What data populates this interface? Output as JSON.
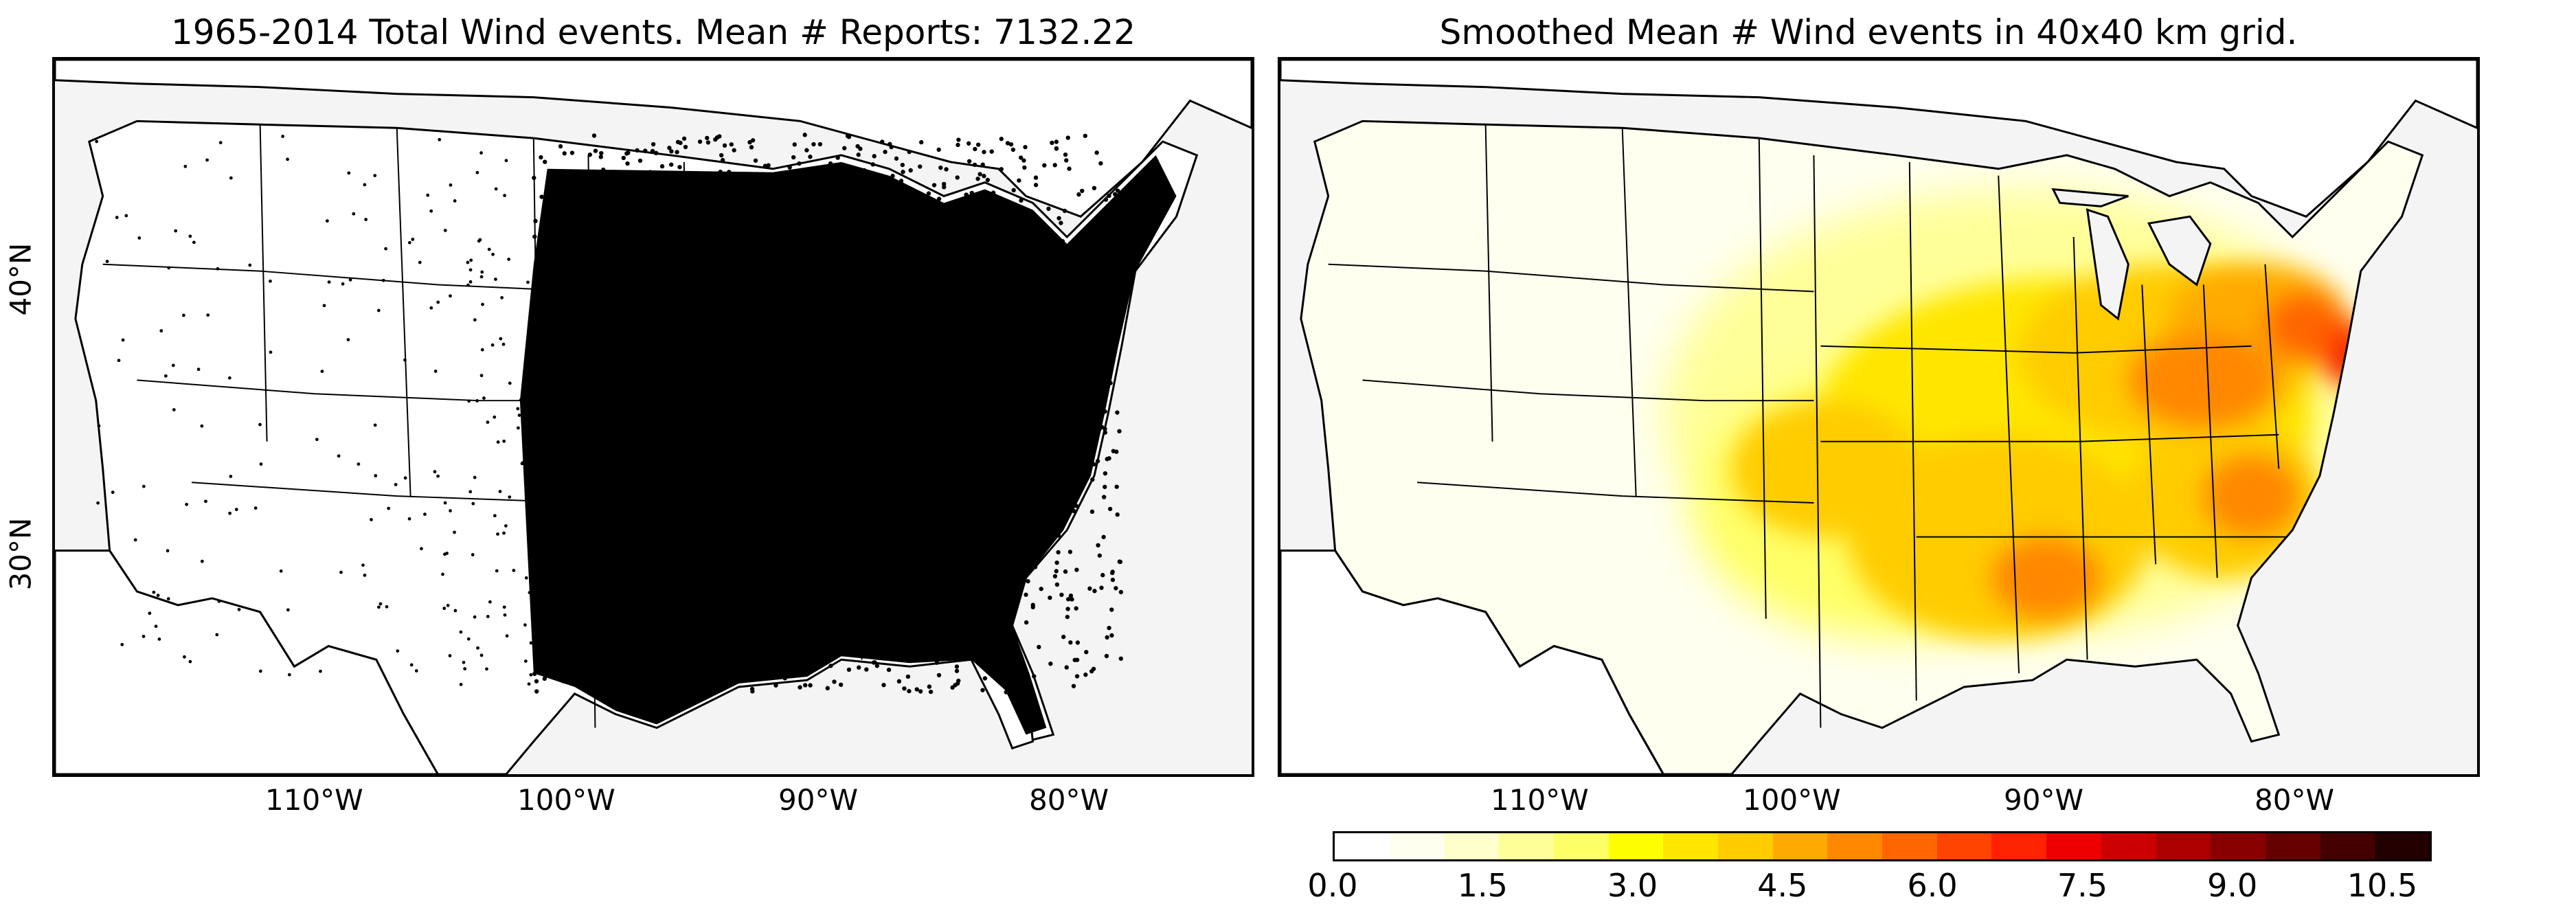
{
  "panels": {
    "left": {
      "title": "1965-2014 Total Wind events. Mean # Reports: 7132.22",
      "lon_ticks": [
        "110°W",
        "100°W",
        "90°W",
        "80°W"
      ],
      "lat_ticks": [
        "40°N",
        "30°N"
      ]
    },
    "right": {
      "title": "Smoothed Mean # Wind events in 40x40 km grid.",
      "lon_ticks": [
        "110°W",
        "100°W",
        "90°W",
        "80°W"
      ]
    }
  },
  "colorbar": {
    "tick_labels": [
      "0.0",
      "1.5",
      "3.0",
      "4.5",
      "6.0",
      "7.5",
      "9.0",
      "10.5"
    ],
    "colors": [
      "#ffffff",
      "#fffff0",
      "#ffffcc",
      "#ffff99",
      "#ffff66",
      "#ffff00",
      "#ffe600",
      "#ffcc00",
      "#ffaa00",
      "#ff8800",
      "#ff6600",
      "#ff4400",
      "#ff2200",
      "#ee0000",
      "#cc0000",
      "#aa0000",
      "#880000",
      "#660000",
      "#440000",
      "#220000"
    ]
  },
  "colors": {
    "land": "#ffffff",
    "ocean": "#f4f4f4",
    "dots": "#000000"
  }
}
